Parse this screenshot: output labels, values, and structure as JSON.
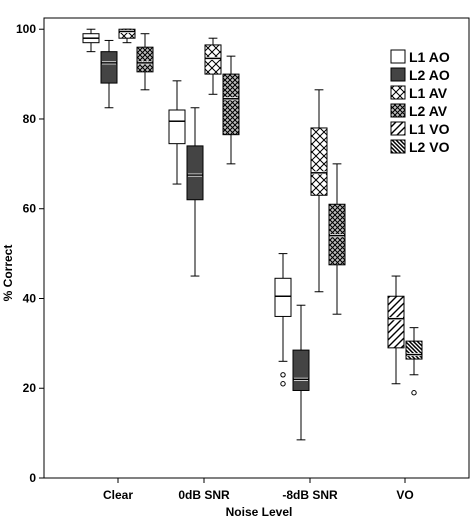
{
  "chart_data": {
    "type": "boxplot",
    "xlabel": "Noise Level",
    "ylabel": "% Correct",
    "ylim": [
      0,
      100
    ],
    "yticks": [
      0,
      20,
      40,
      60,
      80,
      100
    ],
    "categories": [
      "Clear",
      "0dB SNR",
      "-8dB SNR",
      "VO"
    ],
    "legend_position": "top-right",
    "grid": false,
    "series": [
      {
        "name": "L1 AO",
        "pattern": "empty",
        "color": "#ffffff",
        "boxes": [
          {
            "category": "Clear",
            "min": 95,
            "q1": 97,
            "median": 98,
            "q3": 99,
            "max": 100,
            "outliers": []
          },
          {
            "category": "0dB SNR",
            "min": 65.5,
            "q1": 74.5,
            "median": 79.5,
            "q3": 82,
            "max": 88.5,
            "outliers": []
          },
          {
            "category": "-8dB SNR",
            "min": 26,
            "q1": 36,
            "median": 40.5,
            "q3": 44.5,
            "max": 50,
            "outliers": [
              23,
              21
            ]
          }
        ]
      },
      {
        "name": "L2 AO",
        "pattern": "solid",
        "color": "#444444",
        "boxes": [
          {
            "category": "Clear",
            "min": 82.5,
            "q1": 88,
            "median": 92.5,
            "q3": 95,
            "max": 97.5,
            "outliers": []
          },
          {
            "category": "0dB SNR",
            "min": 45,
            "q1": 62,
            "median": 67.5,
            "q3": 74,
            "max": 82.5,
            "outliers": []
          },
          {
            "category": "-8dB SNR",
            "min": 8.5,
            "q1": 19.5,
            "median": 22,
            "q3": 28.5,
            "max": 38.5,
            "outliers": []
          }
        ]
      },
      {
        "name": "L1 AV",
        "pattern": "crosshatch",
        "color": "#ffffff",
        "boxes": [
          {
            "category": "Clear",
            "min": 97,
            "q1": 98,
            "median": 99.5,
            "q3": 100,
            "max": 100,
            "outliers": []
          },
          {
            "category": "0dB SNR",
            "min": 85.5,
            "q1": 90,
            "median": 93.5,
            "q3": 96.5,
            "max": 98,
            "outliers": []
          },
          {
            "category": "-8dB SNR",
            "min": 41.5,
            "q1": 63,
            "median": 68,
            "q3": 78,
            "max": 86.5,
            "outliers": []
          }
        ]
      },
      {
        "name": "L2 AV",
        "pattern": "crosshatch-dense",
        "color": "#999999",
        "boxes": [
          {
            "category": "Clear",
            "min": 86.5,
            "q1": 90.5,
            "median": 92.5,
            "q3": 96,
            "max": 99,
            "outliers": []
          },
          {
            "category": "0dB SNR",
            "min": 70,
            "q1": 76.5,
            "median": 84.5,
            "q3": 90,
            "max": 94,
            "outliers": []
          },
          {
            "category": "-8dB SNR",
            "min": 36.5,
            "q1": 47.5,
            "median": 54,
            "q3": 61,
            "max": 70,
            "outliers": []
          }
        ]
      },
      {
        "name": "L1 VO",
        "pattern": "diagonal",
        "color": "#ffffff",
        "boxes": [
          {
            "category": "VO",
            "min": 21,
            "q1": 29,
            "median": 35.5,
            "q3": 40.5,
            "max": 45,
            "outliers": []
          }
        ]
      },
      {
        "name": "L2 VO",
        "pattern": "diagonal-dense",
        "color": "#666666",
        "boxes": [
          {
            "category": "VO",
            "min": 23,
            "q1": 26.5,
            "median": 27.5,
            "q3": 30.5,
            "max": 33.5,
            "outliers": [
              19
            ]
          }
        ]
      }
    ]
  }
}
